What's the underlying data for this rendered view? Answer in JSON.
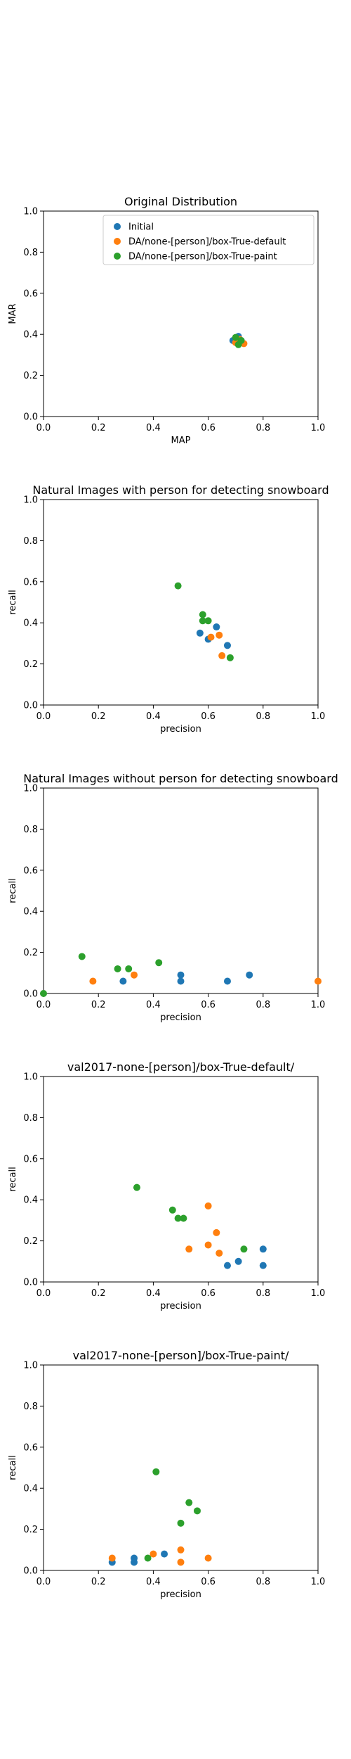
{
  "colors": {
    "initial": "#1f77b4",
    "default": "#ff7f0e",
    "paint": "#2ca02c"
  },
  "chart_data": [
    {
      "type": "scatter",
      "title": "Original Distribution",
      "xlabel": "MAP",
      "ylabel": "MAR",
      "xlim": [
        0,
        1
      ],
      "ylim": [
        0,
        1
      ],
      "xticks": [
        "0.0",
        "0.2",
        "0.4",
        "0.6",
        "0.8",
        "1.0"
      ],
      "yticks": [
        "0.0",
        "0.2",
        "0.4",
        "0.6",
        "0.8",
        "1.0"
      ],
      "legend": {
        "placement": "upper-right",
        "entries": [
          "Initial",
          "DA/none-[person]/box-True-default",
          "DA/none-[person]/box-True-paint"
        ]
      },
      "series": [
        {
          "name": "Initial",
          "color": "#1f77b4",
          "points": [
            [
              0.69,
              0.37
            ],
            [
              0.7,
              0.38
            ],
            [
              0.71,
              0.39
            ],
            [
              0.705,
              0.365
            ],
            [
              0.72,
              0.37
            ]
          ]
        },
        {
          "name": "DA/none-[person]/box-True-default",
          "color": "#ff7f0e",
          "points": [
            [
              0.73,
              0.355
            ],
            [
              0.715,
              0.375
            ],
            [
              0.7,
              0.36
            ]
          ]
        },
        {
          "name": "DA/none-[person]/box-True-paint",
          "color": "#2ca02c",
          "points": [
            [
              0.71,
              0.35
            ],
            [
              0.7,
              0.385
            ],
            [
              0.72,
              0.37
            ]
          ]
        }
      ]
    },
    {
      "type": "scatter",
      "title": "Natural Images with person for detecting snowboard",
      "xlabel": "precision",
      "ylabel": "recall",
      "xlim": [
        0,
        1
      ],
      "ylim": [
        0,
        1
      ],
      "xticks": [
        "0.0",
        "0.2",
        "0.4",
        "0.6",
        "0.8",
        "1.0"
      ],
      "yticks": [
        "0.0",
        "0.2",
        "0.4",
        "0.6",
        "0.8",
        "1.0"
      ],
      "series": [
        {
          "color": "#1f77b4",
          "points": [
            [
              0.57,
              0.35
            ],
            [
              0.6,
              0.32
            ],
            [
              0.63,
              0.38
            ],
            [
              0.67,
              0.29
            ]
          ]
        },
        {
          "color": "#ff7f0e",
          "points": [
            [
              0.61,
              0.33
            ],
            [
              0.64,
              0.34
            ],
            [
              0.65,
              0.24
            ]
          ]
        },
        {
          "color": "#2ca02c",
          "points": [
            [
              0.49,
              0.58
            ],
            [
              0.58,
              0.44
            ],
            [
              0.58,
              0.41
            ],
            [
              0.6,
              0.41
            ],
            [
              0.68,
              0.23
            ]
          ]
        }
      ]
    },
    {
      "type": "scatter",
      "title": "Natural Images without person for detecting snowboard",
      "xlabel": "precision",
      "ylabel": "recall",
      "xlim": [
        0,
        1
      ],
      "ylim": [
        0,
        1
      ],
      "xticks": [
        "0.0",
        "0.2",
        "0.4",
        "0.6",
        "0.8",
        "1.0"
      ],
      "yticks": [
        "0.0",
        "0.2",
        "0.4",
        "0.6",
        "0.8",
        "1.0"
      ],
      "series": [
        {
          "color": "#1f77b4",
          "points": [
            [
              0.29,
              0.06
            ],
            [
              0.5,
              0.06
            ],
            [
              0.5,
              0.09
            ],
            [
              0.67,
              0.06
            ],
            [
              0.75,
              0.09
            ]
          ]
        },
        {
          "color": "#ff7f0e",
          "points": [
            [
              0.18,
              0.06
            ],
            [
              0.33,
              0.09
            ],
            [
              1.0,
              0.06
            ]
          ]
        },
        {
          "color": "#2ca02c",
          "points": [
            [
              0.0,
              0.0
            ],
            [
              0.14,
              0.18
            ],
            [
              0.27,
              0.12
            ],
            [
              0.31,
              0.12
            ],
            [
              0.42,
              0.15
            ]
          ]
        }
      ]
    },
    {
      "type": "scatter",
      "title": "val2017-none-[person]/box-True-default/",
      "xlabel": "precision",
      "ylabel": "recall",
      "xlim": [
        0,
        1
      ],
      "ylim": [
        0,
        1
      ],
      "xticks": [
        "0.0",
        "0.2",
        "0.4",
        "0.6",
        "0.8",
        "1.0"
      ],
      "yticks": [
        "0.0",
        "0.2",
        "0.4",
        "0.6",
        "0.8",
        "1.0"
      ],
      "series": [
        {
          "color": "#1f77b4",
          "points": [
            [
              0.67,
              0.08
            ],
            [
              0.71,
              0.1
            ],
            [
              0.8,
              0.16
            ],
            [
              0.8,
              0.08
            ]
          ]
        },
        {
          "color": "#ff7f0e",
          "points": [
            [
              0.53,
              0.16
            ],
            [
              0.6,
              0.37
            ],
            [
              0.6,
              0.18
            ],
            [
              0.63,
              0.24
            ],
            [
              0.64,
              0.14
            ]
          ]
        },
        {
          "color": "#2ca02c",
          "points": [
            [
              0.34,
              0.46
            ],
            [
              0.47,
              0.35
            ],
            [
              0.49,
              0.31
            ],
            [
              0.51,
              0.31
            ],
            [
              0.73,
              0.16
            ]
          ]
        }
      ]
    },
    {
      "type": "scatter",
      "title": "val2017-none-[person]/box-True-paint/",
      "xlabel": "precision",
      "ylabel": "recall",
      "xlim": [
        0,
        1
      ],
      "ylim": [
        0,
        1
      ],
      "xticks": [
        "0.0",
        "0.2",
        "0.4",
        "0.6",
        "0.8",
        "1.0"
      ],
      "yticks": [
        "0.0",
        "0.2",
        "0.4",
        "0.6",
        "0.8",
        "1.0"
      ],
      "series": [
        {
          "color": "#1f77b4",
          "points": [
            [
              0.25,
              0.04
            ],
            [
              0.33,
              0.04
            ],
            [
              0.33,
              0.06
            ],
            [
              0.44,
              0.08
            ]
          ]
        },
        {
          "color": "#ff7f0e",
          "points": [
            [
              0.25,
              0.06
            ],
            [
              0.4,
              0.08
            ],
            [
              0.5,
              0.1
            ],
            [
              0.5,
              0.04
            ],
            [
              0.6,
              0.06
            ]
          ]
        },
        {
          "color": "#2ca02c",
          "points": [
            [
              0.38,
              0.06
            ],
            [
              0.41,
              0.48
            ],
            [
              0.5,
              0.23
            ],
            [
              0.53,
              0.33
            ],
            [
              0.56,
              0.29
            ]
          ]
        }
      ]
    }
  ]
}
